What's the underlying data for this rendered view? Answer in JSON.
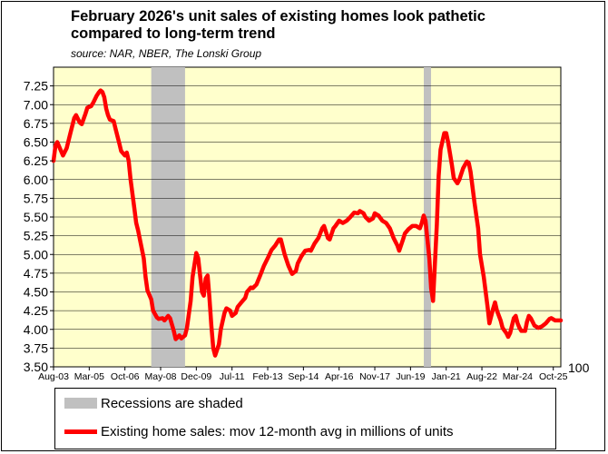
{
  "title_line1": "February 2026's unit sales of existing homes look pathetic",
  "title_line2": "compared to long-term trend",
  "subtitle": "source: NAR, NBER, The Lonski Group",
  "right_axis_label": "100",
  "colors": {
    "plot_bg": "#ffffcc",
    "line": "#ff0000",
    "recession": "#c0c0c0"
  },
  "legend": {
    "recession_label": "Recessions are shaded",
    "series_label": "Existing home sales: mov 12-month avg in millions of units"
  },
  "chart_data": {
    "type": "line",
    "title": "February 2026's unit sales of existing homes look pathetic compared to long-term trend",
    "ylim": [
      3.5,
      7.5
    ],
    "yticks": [
      "3.50",
      "3.75",
      "4.00",
      "4.25",
      "4.50",
      "4.75",
      "5.00",
      "5.25",
      "5.50",
      "5.75",
      "6.00",
      "6.25",
      "6.50",
      "6.75",
      "7.00",
      "7.25"
    ],
    "xrange": [
      "Aug-03",
      "Feb-26"
    ],
    "xticks": [
      "Aug-03",
      "Mar-05",
      "Oct-06",
      "May-08",
      "Dec-09",
      "Jul-11",
      "Feb-13",
      "Sep-14",
      "Apr-16",
      "Nov-17",
      "Jun-19",
      "Jan-21",
      "Aug-22",
      "Mar-24",
      "Oct-25"
    ],
    "recessions": [
      [
        "Dec-07",
        "Jun-09"
      ],
      [
        "Feb-20",
        "Apr-20"
      ]
    ],
    "series": [
      {
        "name": "Existing home sales: mov 12-month avg in millions of units",
        "points": [
          [
            "Aug-03",
            6.25
          ],
          [
            "Sep-03",
            6.45
          ],
          [
            "Oct-03",
            6.5
          ],
          [
            "Dec-03",
            6.38
          ],
          [
            "Jan-04",
            6.32
          ],
          [
            "Mar-04",
            6.42
          ],
          [
            "May-04",
            6.62
          ],
          [
            "Jul-04",
            6.82
          ],
          [
            "Aug-04",
            6.86
          ],
          [
            "Oct-04",
            6.76
          ],
          [
            "Nov-04",
            6.74
          ],
          [
            "Jan-05",
            6.88
          ],
          [
            "Feb-05",
            6.96
          ],
          [
            "Apr-05",
            6.98
          ],
          [
            "May-05",
            7.02
          ],
          [
            "Jul-05",
            7.12
          ],
          [
            "Aug-05",
            7.16
          ],
          [
            "Sep-05",
            7.19
          ],
          [
            "Oct-05",
            7.17
          ],
          [
            "Nov-05",
            7.1
          ],
          [
            "Dec-05",
            6.95
          ],
          [
            "Jan-06",
            6.86
          ],
          [
            "Feb-06",
            6.8
          ],
          [
            "Apr-06",
            6.78
          ],
          [
            "May-06",
            6.68
          ],
          [
            "Jul-06",
            6.48
          ],
          [
            "Aug-06",
            6.38
          ],
          [
            "Oct-06",
            6.32
          ],
          [
            "Nov-06",
            6.36
          ],
          [
            "Dec-06",
            6.25
          ],
          [
            "Jan-07",
            6.0
          ],
          [
            "Mar-07",
            5.62
          ],
          [
            "Apr-07",
            5.42
          ],
          [
            "May-07",
            5.32
          ],
          [
            "Jun-07",
            5.2
          ],
          [
            "Aug-07",
            4.95
          ],
          [
            "Sep-07",
            4.7
          ],
          [
            "Oct-07",
            4.52
          ],
          [
            "Dec-07",
            4.4
          ],
          [
            "Jan-08",
            4.25
          ],
          [
            "Mar-08",
            4.16
          ],
          [
            "Apr-08",
            4.14
          ],
          [
            "Jun-08",
            4.15
          ],
          [
            "Jul-08",
            4.12
          ],
          [
            "Sep-08",
            4.18
          ],
          [
            "Oct-08",
            4.15
          ],
          [
            "Dec-08",
            3.98
          ],
          [
            "Jan-09",
            3.87
          ],
          [
            "Mar-09",
            3.92
          ],
          [
            "Apr-09",
            3.88
          ],
          [
            "Jun-09",
            3.92
          ],
          [
            "Jul-09",
            4.02
          ],
          [
            "Sep-09",
            4.38
          ],
          [
            "Oct-09",
            4.7
          ],
          [
            "Dec-09",
            5.02
          ],
          [
            "Jan-10",
            4.95
          ],
          [
            "Feb-10",
            4.72
          ],
          [
            "Mar-10",
            4.5
          ],
          [
            "Apr-10",
            4.45
          ],
          [
            "May-10",
            4.68
          ],
          [
            "Jun-10",
            4.72
          ],
          [
            "Jul-10",
            4.42
          ],
          [
            "Aug-10",
            4.05
          ],
          [
            "Sep-10",
            3.75
          ],
          [
            "Oct-10",
            3.65
          ],
          [
            "Dec-10",
            3.8
          ],
          [
            "Jan-11",
            4.0
          ],
          [
            "Mar-11",
            4.22
          ],
          [
            "Apr-11",
            4.28
          ],
          [
            "Jun-11",
            4.25
          ],
          [
            "Jul-11",
            4.18
          ],
          [
            "Sep-11",
            4.22
          ],
          [
            "Oct-11",
            4.3
          ],
          [
            "Dec-11",
            4.36
          ],
          [
            "Feb-12",
            4.42
          ],
          [
            "Mar-12",
            4.5
          ],
          [
            "May-12",
            4.56
          ],
          [
            "Jun-12",
            4.55
          ],
          [
            "Aug-12",
            4.6
          ],
          [
            "Oct-12",
            4.72
          ],
          [
            "Dec-12",
            4.85
          ],
          [
            "Feb-13",
            4.95
          ],
          [
            "Apr-13",
            5.06
          ],
          [
            "Jun-13",
            5.12
          ],
          [
            "Aug-13",
            5.2
          ],
          [
            "Sep-13",
            5.2
          ],
          [
            "Nov-13",
            5.0
          ],
          [
            "Jan-14",
            4.85
          ],
          [
            "Mar-14",
            4.74
          ],
          [
            "May-14",
            4.78
          ],
          [
            "Jun-14",
            4.88
          ],
          [
            "Aug-14",
            4.98
          ],
          [
            "Oct-14",
            5.05
          ],
          [
            "Dec-14",
            5.06
          ],
          [
            "Jan-15",
            5.05
          ],
          [
            "Mar-15",
            5.15
          ],
          [
            "May-15",
            5.22
          ],
          [
            "Jul-15",
            5.35
          ],
          [
            "Aug-15",
            5.38
          ],
          [
            "Oct-15",
            5.22
          ],
          [
            "Nov-15",
            5.2
          ],
          [
            "Jan-16",
            5.35
          ],
          [
            "Feb-16",
            5.38
          ],
          [
            "Apr-16",
            5.45
          ],
          [
            "Jun-16",
            5.42
          ],
          [
            "Aug-16",
            5.45
          ],
          [
            "Oct-16",
            5.5
          ],
          [
            "Dec-16",
            5.56
          ],
          [
            "Feb-17",
            5.55
          ],
          [
            "Mar-17",
            5.58
          ],
          [
            "May-17",
            5.55
          ],
          [
            "Jun-17",
            5.5
          ],
          [
            "Aug-17",
            5.45
          ],
          [
            "Oct-17",
            5.48
          ],
          [
            "Nov-17",
            5.55
          ],
          [
            "Jan-18",
            5.52
          ],
          [
            "Mar-18",
            5.45
          ],
          [
            "May-18",
            5.42
          ],
          [
            "Jul-18",
            5.35
          ],
          [
            "Sep-18",
            5.22
          ],
          [
            "Nov-18",
            5.12
          ],
          [
            "Dec-18",
            5.05
          ],
          [
            "Feb-19",
            5.2
          ],
          [
            "Mar-19",
            5.28
          ],
          [
            "May-19",
            5.34
          ],
          [
            "Jul-19",
            5.38
          ],
          [
            "Sep-19",
            5.38
          ],
          [
            "Nov-19",
            5.35
          ],
          [
            "Dec-19",
            5.42
          ],
          [
            "Jan-20",
            5.52
          ],
          [
            "Feb-20",
            5.45
          ],
          [
            "Apr-20",
            4.95
          ],
          [
            "May-20",
            4.55
          ],
          [
            "Jun-20",
            4.38
          ],
          [
            "Aug-20",
            5.4
          ],
          [
            "Sep-20",
            6.05
          ],
          [
            "Oct-20",
            6.4
          ],
          [
            "Dec-20",
            6.62
          ],
          [
            "Jan-21",
            6.62
          ],
          [
            "Feb-21",
            6.5
          ],
          [
            "Apr-21",
            6.2
          ],
          [
            "May-21",
            6.02
          ],
          [
            "Jul-21",
            5.95
          ],
          [
            "Aug-21",
            6.0
          ],
          [
            "Oct-21",
            6.15
          ],
          [
            "Dec-21",
            6.24
          ],
          [
            "Jan-22",
            6.22
          ],
          [
            "Feb-22",
            6.1
          ],
          [
            "Apr-22",
            5.7
          ],
          [
            "Jun-22",
            5.35
          ],
          [
            "Jul-22",
            5.0
          ],
          [
            "Sep-22",
            4.7
          ],
          [
            "Oct-22",
            4.5
          ],
          [
            "Nov-22",
            4.3
          ],
          [
            "Dec-22",
            4.08
          ],
          [
            "Feb-23",
            4.28
          ],
          [
            "Mar-23",
            4.36
          ],
          [
            "Apr-23",
            4.25
          ],
          [
            "Jun-23",
            4.12
          ],
          [
            "Jul-23",
            4.02
          ],
          [
            "Sep-23",
            3.95
          ],
          [
            "Oct-23",
            3.9
          ],
          [
            "Nov-23",
            3.95
          ],
          [
            "Jan-24",
            4.15
          ],
          [
            "Feb-24",
            4.18
          ],
          [
            "Mar-24",
            4.08
          ],
          [
            "Apr-24",
            4.02
          ],
          [
            "May-24",
            3.98
          ],
          [
            "Jul-24",
            3.98
          ],
          [
            "Aug-24",
            4.1
          ],
          [
            "Sep-24",
            4.18
          ],
          [
            "Oct-24",
            4.15
          ],
          [
            "Dec-24",
            4.05
          ],
          [
            "Feb-25",
            4.02
          ],
          [
            "Apr-25",
            4.04
          ],
          [
            "Jun-25",
            4.08
          ],
          [
            "Aug-25",
            4.14
          ],
          [
            "Sep-25",
            4.15
          ],
          [
            "Nov-25",
            4.12
          ],
          [
            "Jan-26",
            4.12
          ],
          [
            "Feb-26",
            4.12
          ]
        ]
      }
    ]
  }
}
